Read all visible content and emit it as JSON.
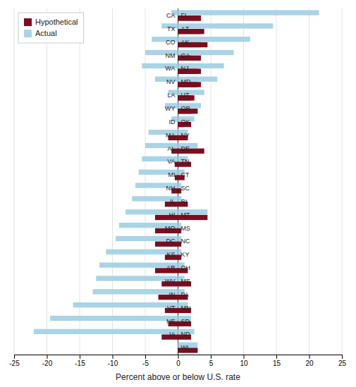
{
  "chart_data": [
    {
      "type": "bar",
      "orientation": "horizontal",
      "categories": [
        "CA",
        "TX",
        "CO",
        "NM",
        "WA",
        "NV",
        "LA",
        "WY",
        "ID",
        "MA",
        "AL",
        "VA",
        "MI",
        "NH",
        "IL",
        "HI",
        "MO",
        "DC",
        "KS",
        "AR",
        "WV",
        "IN",
        "VT",
        "NE",
        "IA"
      ],
      "series": [
        {
          "name": "Actual",
          "color": "#a8d4e6",
          "values": [
            -1.0,
            -2.5,
            -4.0,
            -5.0,
            -5.5,
            -3.5,
            -1.5,
            -2.0,
            -1.0,
            -4.5,
            -5.0,
            -5.5,
            -6.0,
            -6.5,
            -7.0,
            -8.0,
            -9.0,
            -9.5,
            -11.0,
            -12.0,
            -12.5,
            -13.0,
            -16.0,
            -19.5,
            -22.0
          ]
        },
        {
          "name": "Hypothetical",
          "color": "#7b0d1e",
          "values": [
            3.5,
            4.0,
            4.5,
            2.0,
            3.5,
            3.5,
            2.5,
            2.0,
            1.0,
            -1.5,
            -1.0,
            -0.5,
            -0.5,
            -1.0,
            -2.0,
            -3.5,
            -3.5,
            -3.5,
            -2.0,
            -3.5,
            -2.5,
            -3.0,
            -2.0,
            -1.5,
            -2.5
          ]
        }
      ],
      "xlabel": "Percent above or below U.S. rate",
      "xlim": [
        -25,
        25
      ],
      "xticks": [
        -25,
        -20,
        -15,
        -10,
        -5,
        0,
        5,
        10,
        15,
        20,
        25
      ],
      "grid": true,
      "legend": "upper left"
    },
    {
      "type": "bar",
      "orientation": "horizontal",
      "categories": [
        "FL",
        "AZ",
        "AK",
        "GA",
        "NJ",
        "MD",
        "UT",
        "OR",
        "OK",
        "NY",
        "DE",
        "TN",
        "CT",
        "SC",
        "RI",
        "MT",
        "MS",
        "NC",
        "KY",
        "OH",
        "ME",
        "PA",
        "MN",
        "SD",
        "ND",
        "WI"
      ],
      "series": [
        {
          "color": "#a8d4e6",
          "values": [
            21.5,
            14.5,
            11.0,
            8.5,
            7.0,
            6.0,
            4.0,
            3.5,
            2.5,
            1.5,
            3.0,
            1.5,
            1.0,
            0.5,
            0.5,
            4.5,
            0.5,
            0.5,
            0.5,
            1.0,
            1.0,
            1.0,
            1.5,
            2.0,
            2.5,
            3.0
          ]
        },
        {
          "color": "#7b0d1e",
          "values": [
            3.5,
            3.5,
            3.5,
            3.5,
            3.0,
            3.0,
            2.0,
            3.0,
            2.0,
            1.5,
            4.0,
            2.0,
            1.0,
            0.5,
            1.5,
            4.5,
            0.5,
            0.5,
            0.5,
            1.5,
            2.0,
            1.5,
            2.0,
            2.0,
            2.0,
            3.0
          ]
        }
      ]
    }
  ]
}
